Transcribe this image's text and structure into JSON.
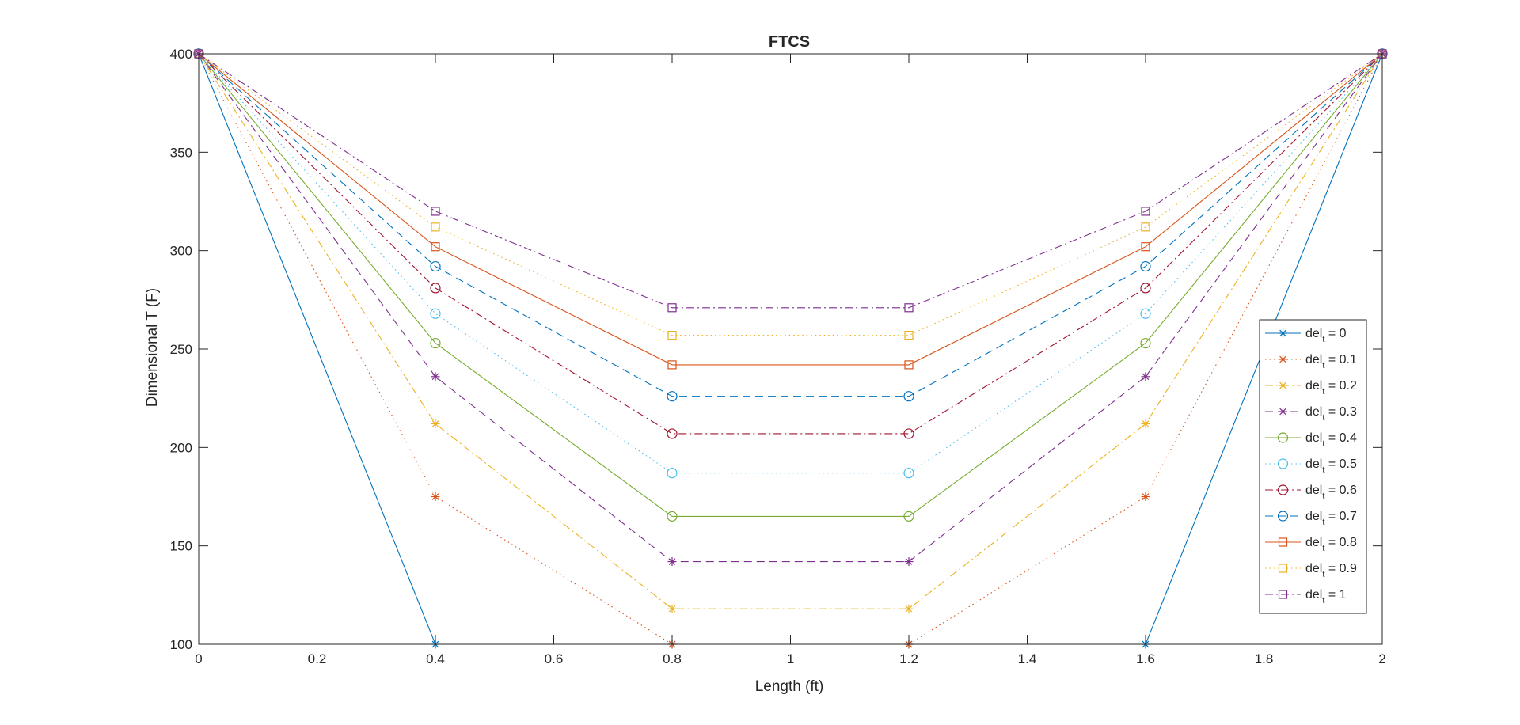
{
  "chart_data": {
    "type": "line",
    "title": "FTCS",
    "xlabel": "Length (ft)",
    "ylabel": "Dimensional T (F)",
    "xlim": [
      0,
      2
    ],
    "ylim": [
      100,
      400
    ],
    "x_ticks": [
      "0",
      "0.2",
      "0.4",
      "0.6",
      "0.8",
      "1",
      "1.2",
      "1.4",
      "1.6",
      "1.8",
      "2"
    ],
    "y_ticks": [
      "100",
      "150",
      "200",
      "250",
      "300",
      "350",
      "400"
    ],
    "grid": false,
    "legend_position": "right",
    "legend_prefix": "del",
    "legend_subscript": "t",
    "x": [
      0,
      0.4,
      0.8,
      1.2,
      1.6,
      2.0
    ],
    "series": [
      {
        "name": " = 0",
        "values": [
          400,
          100,
          100,
          100,
          100,
          400
        ],
        "color": "#0072BD",
        "dash": "solid",
        "marker": "asterisk"
      },
      {
        "name": " = 0.1",
        "values": [
          400,
          175,
          100,
          100,
          175,
          400
        ],
        "color": "#D95319",
        "dash": "dotted",
        "marker": "asterisk"
      },
      {
        "name": " = 0.2",
        "values": [
          400,
          212,
          118,
          118,
          212,
          400
        ],
        "color": "#EDB120",
        "dash": "dashdot",
        "marker": "asterisk"
      },
      {
        "name": " = 0.3",
        "values": [
          400,
          236,
          142,
          142,
          236,
          400
        ],
        "color": "#7E2F8E",
        "dash": "dashed",
        "marker": "asterisk"
      },
      {
        "name": " = 0.4",
        "values": [
          400,
          253,
          165,
          165,
          253,
          400
        ],
        "color": "#77AC30",
        "dash": "solid",
        "marker": "circle"
      },
      {
        "name": " = 0.5",
        "values": [
          400,
          268,
          187,
          187,
          268,
          400
        ],
        "color": "#4DBEEE",
        "dash": "dotted",
        "marker": "circle"
      },
      {
        "name": " = 0.6",
        "values": [
          400,
          281,
          207,
          207,
          281,
          400
        ],
        "color": "#A2142F",
        "dash": "dashdot",
        "marker": "circle"
      },
      {
        "name": " = 0.7",
        "values": [
          400,
          292,
          226,
          226,
          292,
          400
        ],
        "color": "#0072BD",
        "dash": "dashed",
        "marker": "circle"
      },
      {
        "name": " = 0.8",
        "values": [
          400,
          302,
          242,
          242,
          302,
          400
        ],
        "color": "#D95319",
        "dash": "solid",
        "marker": "square"
      },
      {
        "name": " = 0.9",
        "values": [
          400,
          312,
          257,
          257,
          312,
          400
        ],
        "color": "#EDB120",
        "dash": "dotted",
        "marker": "square"
      },
      {
        "name": " = 1",
        "values": [
          400,
          320,
          271,
          271,
          320,
          400
        ],
        "color": "#7E2F8E",
        "dash": "dashdot",
        "marker": "square"
      }
    ]
  }
}
